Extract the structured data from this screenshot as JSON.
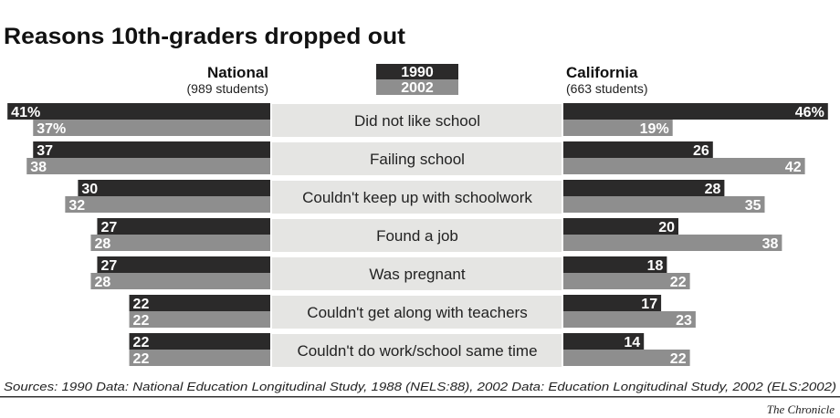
{
  "chart_data": {
    "type": "bar",
    "title": "Reasons 10th-graders dropped out",
    "categories": [
      "Did not like school",
      "Failing school",
      "Couldn't keep up with schoolwork",
      "Found a job",
      "Was pregnant",
      "Couldn't get along with teachers",
      "Couldn't do work/school same time"
    ],
    "legend": [
      "1990",
      "2002"
    ],
    "legend_placement": "top-center",
    "colors": {
      "1990": "#2b2a2a",
      "2002": "#8e8e8e",
      "band": "#e5e5e3"
    },
    "unit": "%",
    "panels": [
      {
        "name": "National",
        "subtitle": "(989 students)",
        "direction": "left",
        "series": [
          {
            "name": "1990",
            "values": [
              41,
              37,
              30,
              27,
              27,
              22,
              22
            ]
          },
          {
            "name": "2002",
            "values": [
              37,
              38,
              32,
              28,
              28,
              22,
              22
            ]
          }
        ]
      },
      {
        "name": "California",
        "subtitle": "(663 students)",
        "direction": "right",
        "series": [
          {
            "name": "1990",
            "values": [
              46,
              26,
              28,
              20,
              18,
              17,
              14
            ]
          },
          {
            "name": "2002",
            "values": [
              19,
              42,
              35,
              38,
              22,
              23,
              22
            ]
          }
        ]
      }
    ],
    "grid": false
  },
  "source": "Sources: 1990 Data: National Education Longitudinal Study, 1988 (NELS:88), 2002 Data: Education Longitudinal Study, 2002 (ELS:2002)",
  "credit": "The Chronicle"
}
